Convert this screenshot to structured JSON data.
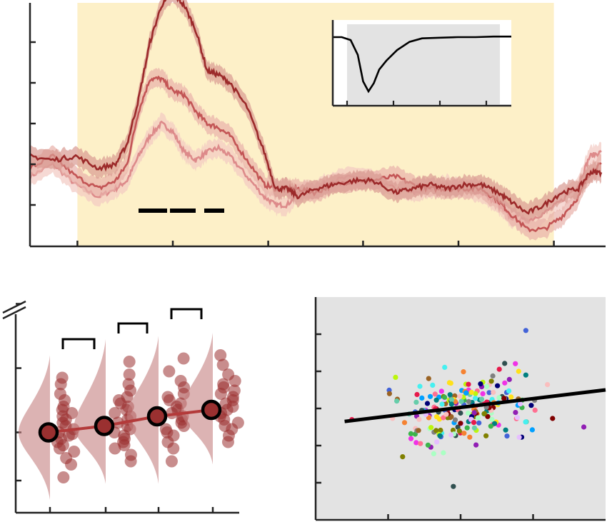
{
  "colors": {
    "shade": "#fdf0c8",
    "panel_gray": "#e3e3e3",
    "axis": "#222222",
    "series": [
      "#9c2a2a",
      "#c35555",
      "#dd8a8a"
    ],
    "band": [
      "#d99a92",
      "#e8b0aa",
      "#f2c9c2"
    ],
    "violin": "#c48080",
    "dot": "#9a3030",
    "mean_line": "#b33a3a"
  },
  "chart_data": [
    {
      "id": "timecourse",
      "type": "line",
      "title": "",
      "xlabel": "",
      "ylabel": "",
      "xlim": [
        0,
        100
      ],
      "ylim": [
        -2,
        10
      ],
      "x_ticks": [
        8.3,
        25,
        41.7,
        58.3,
        75,
        91.7
      ],
      "y_ticks": [
        -1,
        0,
        1,
        2,
        3,
        4,
        5
      ],
      "shaded_region": [
        8.3,
        91.7
      ],
      "significance_bars": [
        [
          19,
          24
        ],
        [
          24.5,
          29
        ],
        [
          30.5,
          34
        ]
      ],
      "series": [
        {
          "x": [
            0,
            4,
            8,
            12,
            15,
            17,
            19,
            21,
            23,
            25,
            27,
            29,
            31,
            33,
            35,
            38,
            41,
            43,
            45,
            47,
            50,
            53,
            57,
            60,
            64,
            67,
            70,
            73,
            76,
            79,
            82,
            84,
            87,
            90,
            93,
            96,
            98,
            100
          ],
          "y": [
            0.2,
            0.1,
            0.2,
            -0.1,
            0.0,
            0.5,
            1.6,
            3.0,
            3.9,
            4.2,
            3.9,
            3.3,
            2.3,
            2.2,
            2.0,
            1.4,
            0.3,
            -0.6,
            -0.6,
            -0.8,
            -0.6,
            -0.5,
            -0.4,
            -0.4,
            -0.7,
            -0.6,
            -0.5,
            -0.6,
            -0.5,
            -0.5,
            -0.7,
            -0.9,
            -1.2,
            -1.0,
            -0.7,
            -0.6,
            -0.2,
            -0.2
          ]
        },
        {
          "x": [
            0,
            4,
            8,
            12,
            15,
            17,
            19,
            21,
            23,
            25,
            27,
            29,
            31,
            33,
            35,
            38,
            41,
            43,
            45,
            47,
            50,
            53,
            57,
            60,
            64,
            67,
            70,
            73,
            76,
            79,
            82,
            84,
            87,
            90,
            93,
            96,
            98,
            100
          ],
          "y": [
            -0.1,
            0.2,
            -0.3,
            -0.6,
            -0.4,
            0.0,
            1.3,
            2.1,
            2.1,
            1.8,
            1.7,
            1.3,
            1.0,
            0.9,
            0.7,
            0.1,
            -0.5,
            -0.6,
            -0.6,
            -0.6,
            -0.7,
            -0.5,
            -0.4,
            -0.4,
            -0.3,
            -0.5,
            -0.6,
            -0.6,
            -0.6,
            -0.6,
            -0.9,
            -1.2,
            -1.6,
            -1.6,
            -1.3,
            -0.8,
            -0.2,
            0.0
          ]
        },
        {
          "x": [
            0,
            4,
            8,
            12,
            15,
            17,
            19,
            21,
            23,
            25,
            27,
            29,
            31,
            33,
            35,
            38,
            41,
            43,
            45,
            47,
            50,
            53,
            57,
            60,
            64,
            67,
            70,
            73,
            76,
            79,
            82,
            84,
            87,
            90,
            93,
            96,
            98,
            100
          ],
          "y": [
            -0.3,
            0.0,
            -0.5,
            -0.8,
            -0.6,
            -0.4,
            0.2,
            0.7,
            1.0,
            0.8,
            0.3,
            0.1,
            0.3,
            0.4,
            0.2,
            -0.3,
            -0.8,
            -1.0,
            -1.0,
            -0.7,
            -0.6,
            -0.4,
            -0.3,
            -0.4,
            -0.6,
            -0.7,
            -0.6,
            -0.5,
            -0.6,
            -0.7,
            -1.0,
            -1.3,
            -1.4,
            -1.2,
            -0.9,
            -0.5,
            0.2,
            0.3
          ]
        }
      ]
    },
    {
      "id": "inset",
      "type": "line",
      "xlim": [
        0,
        10
      ],
      "ylim": [
        -1,
        0.2
      ],
      "x_ticks": [
        0.8,
        3.4,
        6.0,
        8.6
      ],
      "series": [
        {
          "x": [
            0,
            0.5,
            1.0,
            1.4,
            1.7,
            2.0,
            2.3,
            2.6,
            3.0,
            3.6,
            4.3,
            5.0,
            6.0,
            7.0,
            8.0,
            9.0,
            10.0
          ],
          "y": [
            0,
            0,
            -0.05,
            -0.3,
            -0.75,
            -0.92,
            -0.78,
            -0.55,
            -0.4,
            -0.22,
            -0.08,
            -0.02,
            -0.01,
            0.0,
            0.0,
            0.01,
            0.01
          ]
        }
      ]
    },
    {
      "id": "violins",
      "type": "scatter",
      "ylim": [
        0,
        7
      ],
      "y_ticks": [
        1,
        2.5,
        4.5,
        6.5
      ],
      "conditions": [
        {
          "mean": 2.5,
          "points": [
            1.1,
            1.5,
            1.7,
            1.9,
            2.0,
            2.1,
            2.2,
            2.3,
            2.4,
            2.45,
            2.5,
            2.6,
            2.7,
            2.8,
            2.9,
            3.0,
            3.1,
            3.2,
            3.3,
            3.5,
            3.7,
            4.0,
            4.2
          ]
        },
        {
          "mean": 2.7,
          "points": [
            1.6,
            1.8,
            2.0,
            2.1,
            2.2,
            2.3,
            2.4,
            2.5,
            2.6,
            2.7,
            2.8,
            2.9,
            3.0,
            3.1,
            3.2,
            3.3,
            3.4,
            3.5,
            3.6,
            3.8,
            4.0,
            4.3,
            4.7
          ]
        },
        {
          "mean": 3.0,
          "points": [
            1.6,
            2.0,
            2.2,
            2.4,
            2.5,
            2.6,
            2.7,
            2.8,
            2.9,
            3.0,
            3.1,
            3.2,
            3.3,
            3.4,
            3.5,
            3.6,
            3.7,
            3.9,
            4.1,
            4.4,
            4.8
          ]
        },
        {
          "mean": 3.2,
          "points": [
            2.2,
            2.4,
            2.6,
            2.7,
            2.8,
            2.9,
            3.0,
            3.1,
            3.2,
            3.3,
            3.4,
            3.5,
            3.6,
            3.7,
            3.8,
            3.9,
            4.0,
            4.1,
            4.3,
            4.6,
            4.9
          ]
        }
      ],
      "comparison_brackets": [
        [
          1,
          2
        ],
        [
          2,
          3
        ],
        [
          3,
          4
        ]
      ]
    },
    {
      "id": "scatter",
      "type": "scatter",
      "xlim": [
        0,
        4
      ],
      "ylim": [
        0,
        6
      ],
      "x_ticks": [
        1,
        2,
        3
      ],
      "y_ticks": [
        1,
        2,
        3,
        4,
        5
      ],
      "regression": {
        "x": [
          0.4,
          4.0
        ],
        "y": [
          2.65,
          3.5
        ]
      },
      "point_count": 220
    }
  ]
}
